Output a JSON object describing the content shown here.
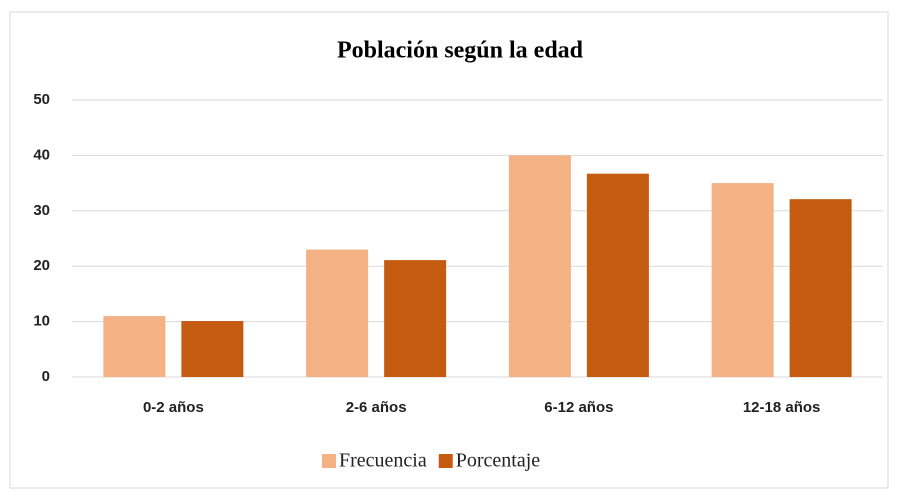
{
  "chart_data": {
    "type": "bar",
    "title": "Población según la edad",
    "categories": [
      "0-2 años",
      "2-6 años",
      "6-12 años",
      "12-18 años"
    ],
    "series": [
      {
        "name": "Frecuencia",
        "color": "#f4b183",
        "values": [
          11,
          23,
          40,
          35
        ]
      },
      {
        "name": "Porcentaje",
        "color": "#c55a11",
        "values": [
          10.1,
          21.1,
          36.7,
          32.1
        ]
      }
    ],
    "ylim": [
      0,
      50
    ],
    "yticks": [
      0,
      10,
      20,
      30,
      40,
      50
    ],
    "grid": true,
    "legend": "bottom"
  }
}
